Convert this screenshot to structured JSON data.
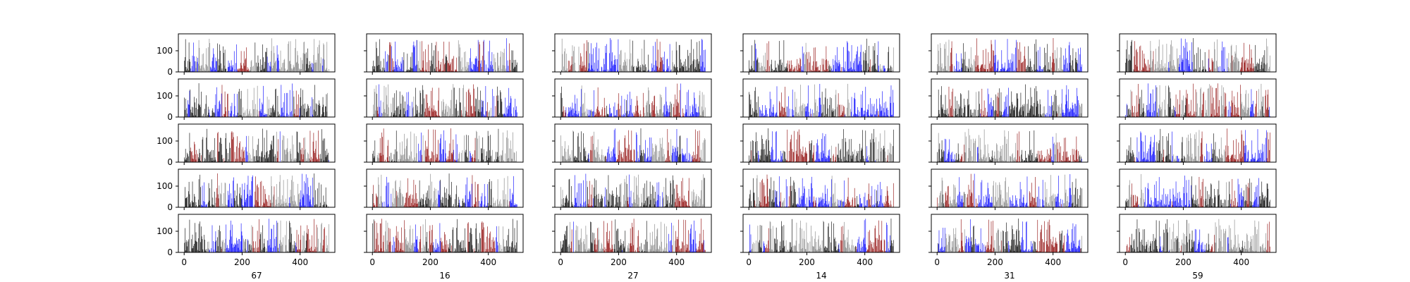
{
  "chart_data": {
    "type": "bar",
    "layout": {
      "rows": 5,
      "cols": 6
    },
    "column_labels": [
      "67",
      "16",
      "27",
      "14",
      "31",
      "59"
    ],
    "shared_y": true,
    "ylim": [
      0,
      180
    ],
    "yticks": [
      0,
      100
    ],
    "xlim": [
      -20,
      520
    ],
    "xticks": [
      0,
      200,
      400
    ],
    "bars_per_panel": 500,
    "bar_value_range": [
      0,
      160
    ],
    "bar_colors": [
      "#000000",
      "#7f7f7f",
      "#0000ff",
      "#8b0000"
    ],
    "edge_color": "#000000",
    "note": ""
  }
}
